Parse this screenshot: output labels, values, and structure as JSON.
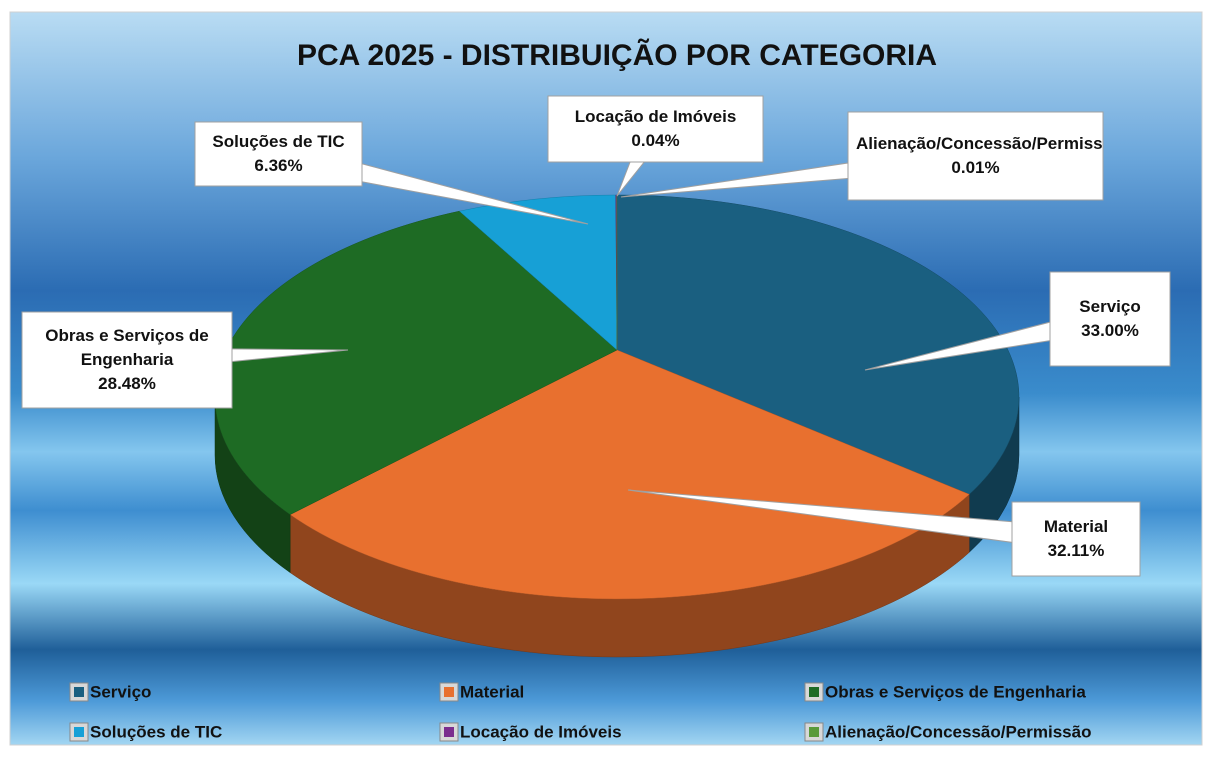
{
  "chart_data": {
    "type": "pie",
    "title": "PCA 2025 - DISTRIBUIÇÃO POR CATEGORIA",
    "categories": [
      "Serviço",
      "Material",
      "Obras e Serviços de Engenharia",
      "Soluções de TIC",
      "Locação de Imóveis",
      "Alienação/Concessão/Permissão"
    ],
    "values": [
      33.0,
      32.11,
      28.48,
      6.36,
      0.04,
      0.01
    ],
    "value_labels": [
      "33.00%",
      "32.11%",
      "28.48%",
      "6.36%",
      "0.04%",
      "0.01%"
    ],
    "colors": [
      "#1a5f80",
      "#e8702f",
      "#1e6b24",
      "#17a0d6",
      "#7b2d8e",
      "#5a9a3a"
    ],
    "legend": "bottom"
  }
}
